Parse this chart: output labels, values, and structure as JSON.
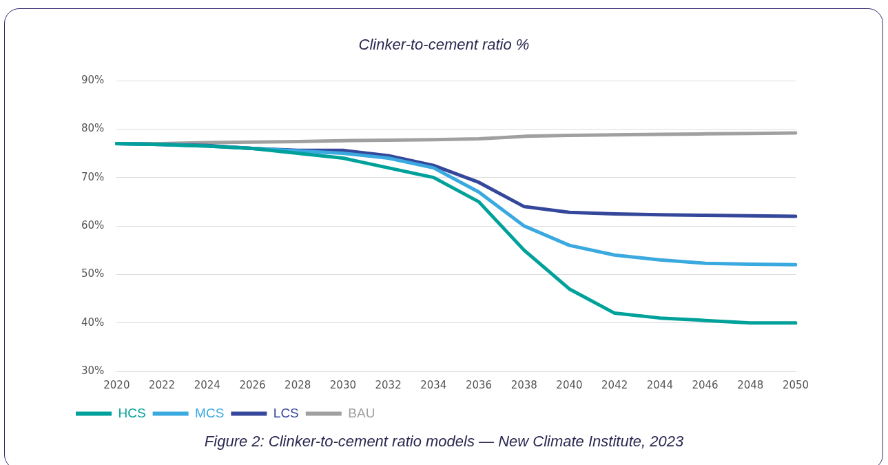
{
  "chart_data": {
    "type": "line",
    "title": "Clinker-to-cement ratio %",
    "categories": [
      "2020",
      "2022",
      "2024",
      "2026",
      "2028",
      "2030",
      "2032",
      "2034",
      "2036",
      "2038",
      "2040",
      "2042",
      "2044",
      "2046",
      "2048",
      "2050"
    ],
    "series": [
      {
        "name": "HCS",
        "color": "#00a19a",
        "values": [
          77,
          76.8,
          76.5,
          76,
          75,
          74,
          72,
          70,
          65,
          55,
          47,
          42,
          41,
          40.5,
          40,
          40
        ]
      },
      {
        "name": "MCS",
        "color": "#3aa9e0",
        "values": [
          77,
          76.8,
          76.5,
          76,
          75.5,
          75,
          74,
          72,
          67,
          60,
          56,
          54,
          53,
          52.3,
          52.1,
          52
        ]
      },
      {
        "name": "LCS",
        "color": "#34479a",
        "values": [
          77,
          76.8,
          76.6,
          76,
          75.6,
          75.6,
          74.5,
          72.5,
          69,
          64,
          62.8,
          62.5,
          62.3,
          62.2,
          62.1,
          62
        ]
      },
      {
        "name": "BAU",
        "color": "#a0a0a0",
        "values": [
          77,
          77,
          77.2,
          77.3,
          77.4,
          77.6,
          77.7,
          77.8,
          78,
          78.5,
          78.7,
          78.8,
          78.9,
          79,
          79.1,
          79.2
        ]
      }
    ],
    "ylim": [
      30,
      90
    ],
    "yticks": [
      {
        "value": 30,
        "label": "30%"
      },
      {
        "value": 40,
        "label": "40%"
      },
      {
        "value": 50,
        "label": "50%"
      },
      {
        "value": 60,
        "label": "60%"
      },
      {
        "value": 70,
        "label": "70%"
      },
      {
        "value": 80,
        "label": "80%"
      },
      {
        "value": 90,
        "label": "90%"
      }
    ],
    "grid": "y",
    "legend": "bottom left",
    "marker": "none",
    "line_style": "solid",
    "annotations": [
      "Figure 2: Clinker-to-cement ratio models — New Climate Institute, 2023"
    ]
  }
}
